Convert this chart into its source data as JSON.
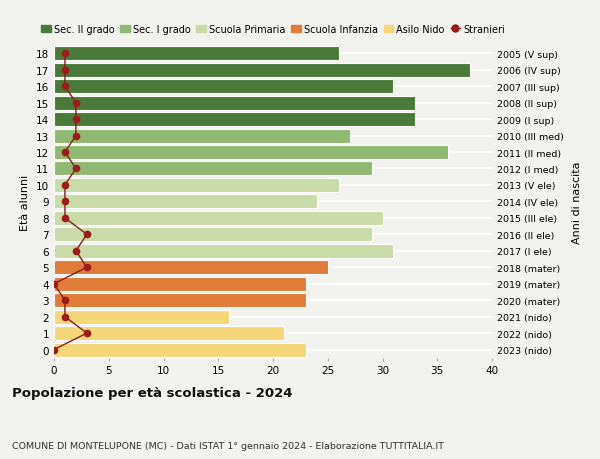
{
  "ages": [
    0,
    1,
    2,
    3,
    4,
    5,
    6,
    7,
    8,
    9,
    10,
    11,
    12,
    13,
    14,
    15,
    16,
    17,
    18
  ],
  "right_labels": [
    "2023 (nido)",
    "2022 (nido)",
    "2021 (nido)",
    "2020 (mater)",
    "2019 (mater)",
    "2018 (mater)",
    "2017 (I ele)",
    "2016 (II ele)",
    "2015 (III ele)",
    "2014 (IV ele)",
    "2013 (V ele)",
    "2012 (I med)",
    "2011 (II med)",
    "2010 (III med)",
    "2009 (I sup)",
    "2008 (II sup)",
    "2007 (III sup)",
    "2006 (IV sup)",
    "2005 (V sup)"
  ],
  "bar_values": [
    23,
    21,
    16,
    23,
    23,
    25,
    31,
    29,
    30,
    24,
    26,
    29,
    36,
    27,
    33,
    33,
    31,
    38,
    26
  ],
  "bar_colors": [
    "#f5d77a",
    "#f5d77a",
    "#f5d77a",
    "#e07b39",
    "#e07b39",
    "#e07b39",
    "#c8dba8",
    "#c8dba8",
    "#c8dba8",
    "#c8dba8",
    "#c8dba8",
    "#8fb870",
    "#8fb870",
    "#8fb870",
    "#4a7a3a",
    "#4a7a3a",
    "#4a7a3a",
    "#4a7a3a",
    "#4a7a3a"
  ],
  "stranieri_values": [
    0,
    3,
    1,
    1,
    0,
    3,
    2,
    3,
    1,
    1,
    1,
    2,
    1,
    2,
    2,
    2,
    1,
    1,
    1
  ],
  "legend_labels": [
    "Sec. II grado",
    "Sec. I grado",
    "Scuola Primaria",
    "Scuola Infanzia",
    "Asilo Nido",
    "Stranieri"
  ],
  "legend_colors": [
    "#4a7a3a",
    "#8fb870",
    "#c8dba8",
    "#e07b39",
    "#f5d77a",
    "#9b1a1a"
  ],
  "title": "Popolazione per età scolastica - 2024",
  "subtitle": "COMUNE DI MONTELUPONE (MC) - Dati ISTAT 1° gennaio 2024 - Elaborazione TUTTITALIA.IT",
  "ylabel": "Età alunni",
  "right_ylabel": "Anni di nascita",
  "xlim": [
    0,
    40
  ],
  "xticks": [
    0,
    5,
    10,
    15,
    20,
    25,
    30,
    35,
    40
  ],
  "background_color": "#f2f2ee",
  "grid_color": "#ffffff",
  "stranieri_line_color": "#8b1a1a",
  "stranieri_dot_color": "#9b1a1a"
}
